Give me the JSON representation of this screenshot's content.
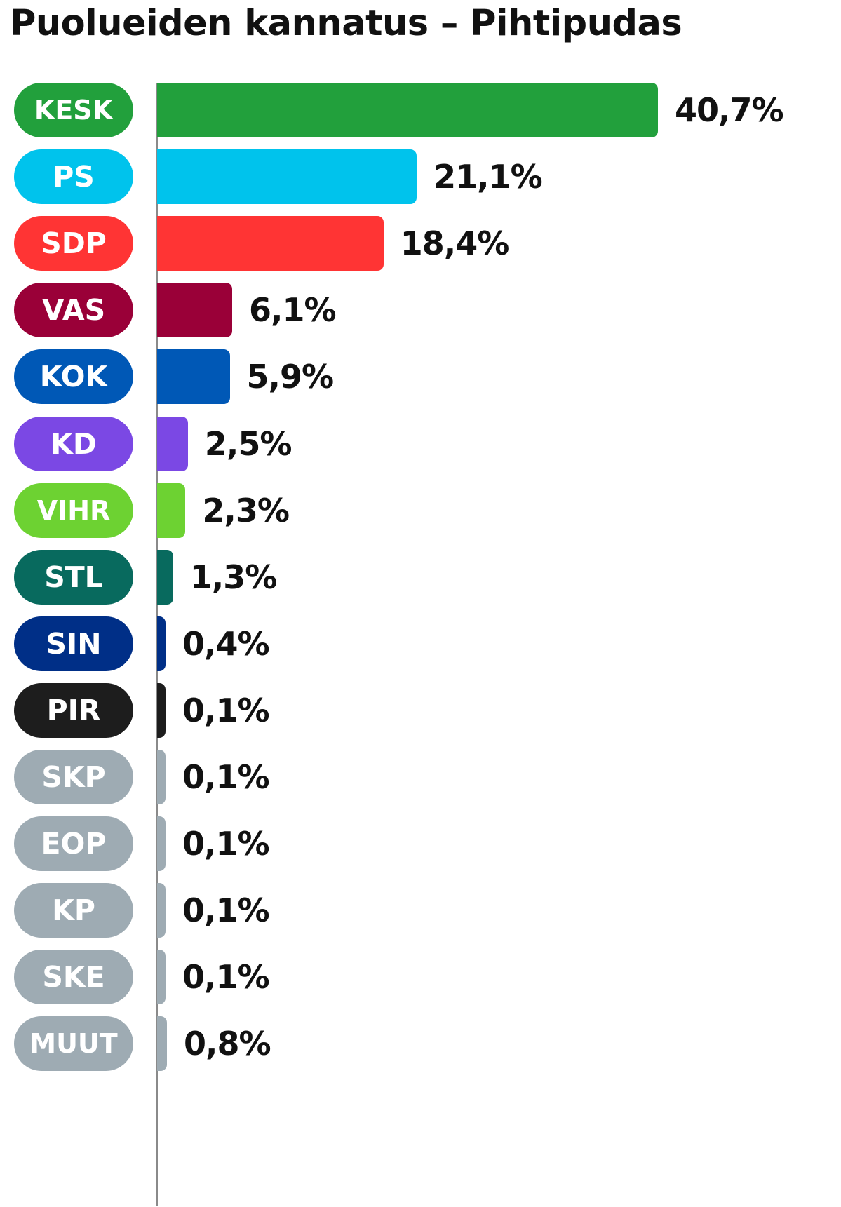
{
  "chart_data": {
    "type": "bar",
    "orientation": "horizontal",
    "title": "Puolueiden kannatus – Pihtipudas",
    "categories": [
      "KESK",
      "PS",
      "SDP",
      "VAS",
      "KOK",
      "KD",
      "VIHR",
      "STL",
      "SIN",
      "PIR",
      "SKP",
      "EOP",
      "KP",
      "SKE",
      "MUUT"
    ],
    "values": [
      40.7,
      21.1,
      18.4,
      6.1,
      5.9,
      2.5,
      2.3,
      1.3,
      0.4,
      0.1,
      0.1,
      0.1,
      0.1,
      0.1,
      0.8
    ],
    "value_labels": [
      "40,7%",
      "21,1%",
      "18,4%",
      "6,1%",
      "5,9%",
      "2,5%",
      "2,3%",
      "1,3%",
      "0,4%",
      "0,1%",
      "0,1%",
      "0,1%",
      "0,1%",
      "0,1%",
      "0,8%"
    ],
    "colors": [
      "#22a03c",
      "#00c3ec",
      "#ff3434",
      "#9a0038",
      "#0058b6",
      "#7b48e4",
      "#6dd232",
      "#086a5e",
      "#002f87",
      "#1d1d1d",
      "#9eabb3",
      "#9eabb3",
      "#9eabb3",
      "#9eabb3",
      "#9eabb3"
    ],
    "xlabel": "",
    "ylabel": "",
    "xlim": [
      0,
      40.7
    ],
    "grid": false,
    "legend": "none"
  }
}
